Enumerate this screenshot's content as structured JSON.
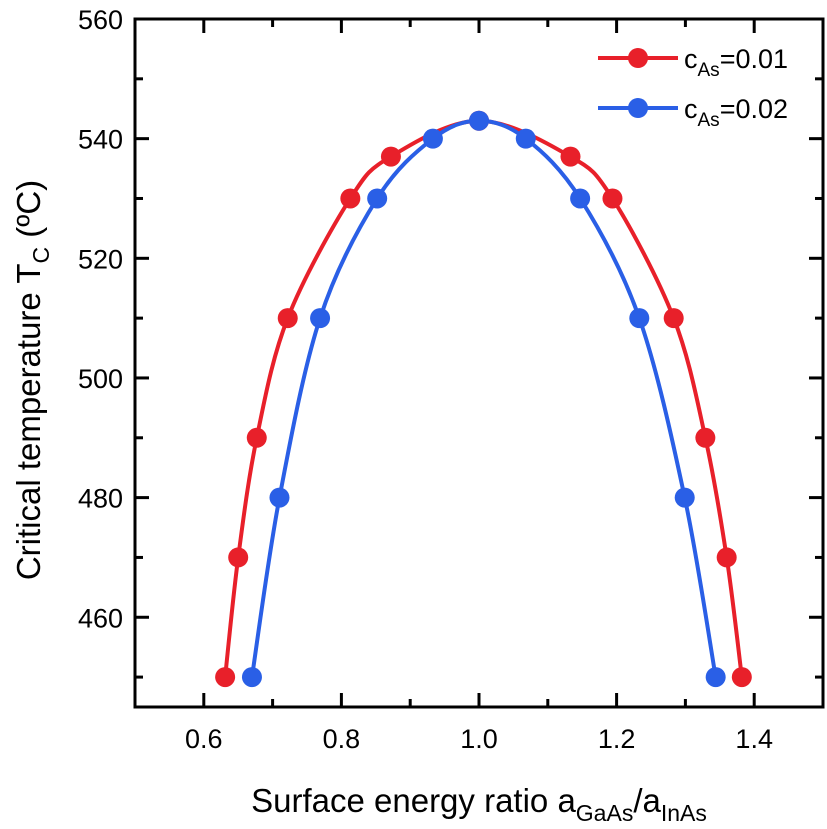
{
  "chart_data": {
    "type": "line",
    "xlabel": {
      "main": "Surface energy ratio a",
      "sub1": "GaAs",
      "slash": "/a",
      "sub2": "InAs"
    },
    "ylabel": {
      "main": "Critical temperature T",
      "sub": "C",
      "unit": " (ºC)"
    },
    "xlim": [
      0.5,
      1.5
    ],
    "ylim": [
      445,
      560
    ],
    "xticks": [
      "0.6",
      "0.8",
      "1.0",
      "1.2",
      "1.4"
    ],
    "xtick_values": [
      0.6,
      0.8,
      1.0,
      1.2,
      1.4
    ],
    "yticks": [
      "460",
      "480",
      "500",
      "520",
      "540",
      "560"
    ],
    "ytick_values": [
      460,
      480,
      500,
      520,
      540,
      560
    ],
    "grid": false,
    "legend_position": "top-right",
    "series": [
      {
        "name": "c_As=0.01",
        "legend": {
          "c": "c",
          "sub": "As",
          "rest": "=0.01"
        },
        "color": "#e8202a",
        "x": [
          0.631,
          0.65,
          0.677,
          0.722,
          0.813,
          0.872,
          1.0,
          1.133,
          1.194,
          1.283,
          1.329,
          1.36,
          1.382
        ],
        "y": [
          450,
          470,
          490,
          510,
          530,
          537,
          543,
          537,
          530,
          510,
          490,
          470,
          450
        ]
      },
      {
        "name": "c_As=0.02",
        "legend": {
          "c": "c",
          "sub": "As",
          "rest": "=0.02"
        },
        "color": "#2a5fe6",
        "x": [
          0.67,
          0.71,
          0.769,
          0.852,
          0.933,
          1.0,
          1.068,
          1.147,
          1.233,
          1.299,
          1.344
        ],
        "y": [
          450,
          480,
          510,
          530,
          540,
          543,
          540,
          530,
          510,
          480,
          450
        ]
      }
    ]
  }
}
